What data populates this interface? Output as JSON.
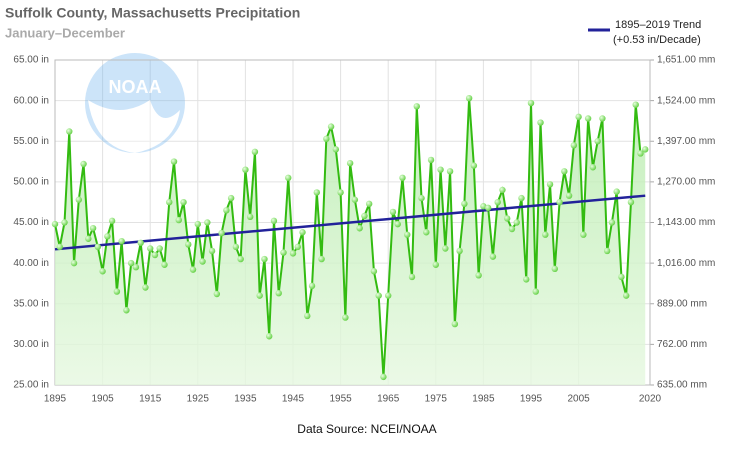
{
  "chart_data": {
    "type": "line",
    "title": "Suffolk County, Massachusetts Precipitation",
    "subtitle": "January–December",
    "source": "Data Source: NCEI/NOAA",
    "logo_text": "NOAA",
    "trend_note": "(+0.53 in/Decade)",
    "x": [
      1895,
      1896,
      1897,
      1898,
      1899,
      1900,
      1901,
      1902,
      1903,
      1904,
      1905,
      1906,
      1907,
      1908,
      1909,
      1910,
      1911,
      1912,
      1913,
      1914,
      1915,
      1916,
      1917,
      1918,
      1919,
      1920,
      1921,
      1922,
      1923,
      1924,
      1925,
      1926,
      1927,
      1928,
      1929,
      1930,
      1931,
      1932,
      1933,
      1934,
      1935,
      1936,
      1937,
      1938,
      1939,
      1940,
      1941,
      1942,
      1943,
      1944,
      1945,
      1946,
      1947,
      1948,
      1949,
      1950,
      1951,
      1952,
      1953,
      1954,
      1955,
      1956,
      1957,
      1958,
      1959,
      1960,
      1961,
      1962,
      1963,
      1964,
      1965,
      1966,
      1967,
      1968,
      1969,
      1970,
      1971,
      1972,
      1973,
      1974,
      1975,
      1976,
      1977,
      1978,
      1979,
      1980,
      1981,
      1982,
      1983,
      1984,
      1985,
      1986,
      1987,
      1988,
      1989,
      1990,
      1991,
      1992,
      1993,
      1994,
      1995,
      1996,
      1997,
      1998,
      1999,
      2000,
      2001,
      2002,
      2003,
      2004,
      2005,
      2006,
      2007,
      2008,
      2009,
      2010,
      2011,
      2012,
      2013,
      2014,
      2015,
      2016,
      2017,
      2018,
      2019
    ],
    "series": [
      {
        "color": "#33bb11",
        "values": [
          44.8,
          42.0,
          45.0,
          56.2,
          40.0,
          47.8,
          52.2,
          43.0,
          44.3,
          42.0,
          39.0,
          43.3,
          45.2,
          36.5,
          42.7,
          34.2,
          40.0,
          39.5,
          42.5,
          37.0,
          41.8,
          41.0,
          41.8,
          39.8,
          47.5,
          52.5,
          45.3,
          47.5,
          42.3,
          39.2,
          44.8,
          40.2,
          45.0,
          41.5,
          36.2,
          43.7,
          46.5,
          48.0,
          42.0,
          40.5,
          51.5,
          45.7,
          53.7,
          36.0,
          40.5,
          31.0,
          45.2,
          36.3,
          41.3,
          50.5,
          41.2,
          42.0,
          43.8,
          33.5,
          37.2,
          48.7,
          40.5,
          55.3,
          56.8,
          54.0,
          48.7,
          33.3,
          52.3,
          47.8,
          44.3,
          45.8,
          47.3,
          39.0,
          36.0,
          26.0,
          36.0,
          46.3,
          44.8,
          50.5,
          43.5,
          38.3,
          59.3,
          48.0,
          43.8,
          52.7,
          39.8,
          51.5,
          41.8,
          51.3,
          32.5,
          41.5,
          47.3,
          60.3,
          52.0,
          38.5,
          47.0,
          46.8,
          40.8,
          47.5,
          49.0,
          45.5,
          44.2,
          45.0,
          48.0,
          38.0,
          59.7,
          36.5,
          57.3,
          43.5,
          49.7,
          39.3,
          47.5,
          51.3,
          48.3,
          54.5,
          58.0,
          43.5,
          57.8,
          51.8,
          55.0,
          57.8,
          41.5,
          45.0,
          48.8,
          38.3,
          36.0,
          47.5,
          59.5,
          53.5,
          54.0
        ]
      },
      {
        "name": "1895–2019 Trend",
        "color": "#22229a",
        "x": [
          1895,
          2019
        ],
        "values": [
          41.7,
          48.3
        ]
      }
    ],
    "xlim": [
      1895,
      2020
    ],
    "xticks": [
      1895,
      1905,
      1915,
      1925,
      1935,
      1945,
      1955,
      1965,
      1975,
      1985,
      1995,
      2005,
      2020
    ],
    "ylim": [
      25,
      65
    ],
    "yticks": [
      {
        "value": 25,
        "label": "25.00 in"
      },
      {
        "value": 30,
        "label": "30.00 in"
      },
      {
        "value": 35,
        "label": "35.00 in"
      },
      {
        "value": 40,
        "label": "40.00 in"
      },
      {
        "value": 45,
        "label": "45.00 in"
      },
      {
        "value": 50,
        "label": "50.00 in"
      },
      {
        "value": 55,
        "label": "55.00 in"
      },
      {
        "value": 60,
        "label": "60.00 in"
      },
      {
        "value": 65,
        "label": "65.00 in"
      }
    ],
    "y2lim": [
      635,
      1651
    ],
    "y2ticks": [
      {
        "value": 635,
        "label": "635.00 mm"
      },
      {
        "value": 762,
        "label": "762.00 mm"
      },
      {
        "value": 889,
        "label": "889.00 mm"
      },
      {
        "value": 1016,
        "label": "1,016.00 mm"
      },
      {
        "value": 1143,
        "label": "1,143.00 mm"
      },
      {
        "value": 1270,
        "label": "1,270.00 mm"
      },
      {
        "value": 1397,
        "label": "1,397.00 mm"
      },
      {
        "value": 1524,
        "label": "1,524.00 mm"
      },
      {
        "value": 1651,
        "label": "1,651.00 mm"
      }
    ],
    "grid": true
  }
}
